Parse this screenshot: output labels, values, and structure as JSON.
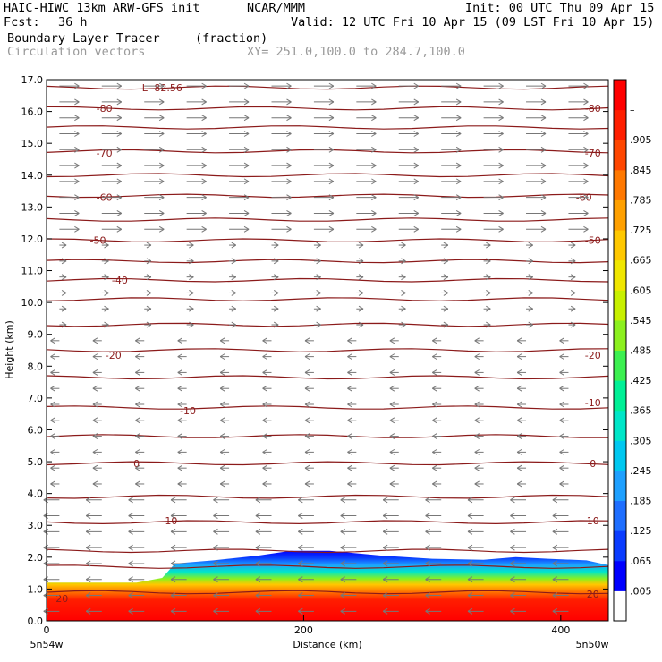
{
  "header": {
    "model": "HAIC-HIWC 13km ARW-GFS init",
    "org": "NCAR/MMM",
    "init": "Init: 00 UTC Thu 09 Apr 15",
    "fcst_label": "Fcst:",
    "fcst_value": "36 h",
    "valid": "Valid: 12 UTC Fri 10 Apr 15 (09 LST Fri 10 Apr 15)",
    "field": "Boundary Layer Tracer",
    "units": "(fraction)",
    "vectors": "Circulation vectors",
    "xy": "XY= 251.0,100.0 to 284.7,100.0"
  },
  "chart_data": {
    "type": "heatmap",
    "title": "Boundary Layer Tracer (fraction)",
    "xlabel": "Distance (km)",
    "ylabel": "Height (km)",
    "xlim": [
      0,
      437
    ],
    "ylim": [
      0,
      17
    ],
    "x_ticks": [
      0,
      200,
      400
    ],
    "x_end_labels": [
      "5n54w",
      "5n50w"
    ],
    "y_ticks": [
      "0.0",
      "1.0",
      "2.0",
      "3.0",
      "4.0",
      "5.0",
      "6.0",
      "7.0",
      "8.0",
      "9.0",
      "10.0",
      "11.0",
      "12.0",
      "13.0",
      "14.0",
      "15.0",
      "16.0",
      "17.0"
    ],
    "colorbar": {
      "labels": [
        ".005",
        ".065",
        ".125",
        ".185",
        ".245",
        ".305",
        ".365",
        ".425",
        ".485",
        ".545",
        ".605",
        ".665",
        ".725",
        ".785",
        ".845",
        ".905",
        "–"
      ],
      "colors": [
        "#ffffff",
        "#0000ff",
        "#0a3cff",
        "#1e6eff",
        "#1ea0ff",
        "#00c8f0",
        "#00e6c8",
        "#00f096",
        "#3cf050",
        "#8cf01e",
        "#c8f000",
        "#f0e600",
        "#ffc800",
        "#ffa000",
        "#ff7800",
        "#ff4600",
        "#ff1e00",
        "#ff0000"
      ]
    },
    "bl_top_km": [
      [
        0,
        1.2
      ],
      [
        35,
        1.2
      ],
      [
        70,
        1.2
      ],
      [
        90,
        1.35
      ],
      [
        100,
        1.8
      ],
      [
        130,
        1.9
      ],
      [
        165,
        2.05
      ],
      [
        190,
        2.2
      ],
      [
        220,
        2.2
      ],
      [
        260,
        2.05
      ],
      [
        300,
        1.95
      ],
      [
        340,
        1.92
      ],
      [
        365,
        2.0
      ],
      [
        390,
        1.95
      ],
      [
        420,
        1.9
      ],
      [
        437,
        1.75
      ]
    ],
    "temp_contours": [
      {
        "value": -82.56,
        "label": "L -82.56",
        "height_km": 16.75,
        "x_km": 90
      },
      {
        "value": -80,
        "label": "-80",
        "height_km": 16.1,
        "x_km": 45
      },
      {
        "value": -80,
        "label": "-80",
        "height_km": 16.1,
        "x_km": 425
      },
      {
        "value": -70,
        "label": "-70",
        "height_km": 14.7,
        "x_km": 45
      },
      {
        "value": -70,
        "label": "-70",
        "height_km": 14.7,
        "x_km": 425
      },
      {
        "value": -60,
        "label": "-60",
        "height_km": 13.3,
        "x_km": 45
      },
      {
        "value": -60,
        "label": "-60",
        "height_km": 13.3,
        "x_km": 418
      },
      {
        "value": -50,
        "label": "-50",
        "height_km": 11.95,
        "x_km": 40
      },
      {
        "value": -50,
        "label": "-50",
        "height_km": 11.95,
        "x_km": 425
      },
      {
        "value": -40,
        "label": "-40",
        "height_km": 10.7,
        "x_km": 57
      },
      {
        "value": -20,
        "label": "-20",
        "height_km": 8.35,
        "x_km": 52
      },
      {
        "value": -20,
        "label": "-20",
        "height_km": 8.35,
        "x_km": 425
      },
      {
        "value": -10,
        "label": "-10",
        "height_km": 6.6,
        "x_km": 110
      },
      {
        "value": -10,
        "label": "-10",
        "height_km": 6.85,
        "x_km": 425
      },
      {
        "value": 0,
        "label": "0",
        "height_km": 4.95,
        "x_km": 70
      },
      {
        "value": 0,
        "label": "0",
        "height_km": 4.95,
        "x_km": 425
      },
      {
        "value": 10,
        "label": "10",
        "height_km": 3.15,
        "x_km": 97
      },
      {
        "value": 10,
        "label": "10",
        "height_km": 3.15,
        "x_km": 425
      },
      {
        "value": 20,
        "label": "20",
        "height_km": 0.7,
        "x_km": 12
      },
      {
        "value": 20,
        "label": "20",
        "height_km": 0.85,
        "x_km": 425
      }
    ],
    "contour_lines_km": [
      0.9,
      1.7,
      2.2,
      3.1,
      3.9,
      4.95,
      5.8,
      6.7,
      7.65,
      8.5,
      9.3,
      10.1,
      10.7,
      11.3,
      11.95,
      12.6,
      13.35,
      14.0,
      14.75,
      15.5,
      16.1,
      16.75
    ]
  }
}
